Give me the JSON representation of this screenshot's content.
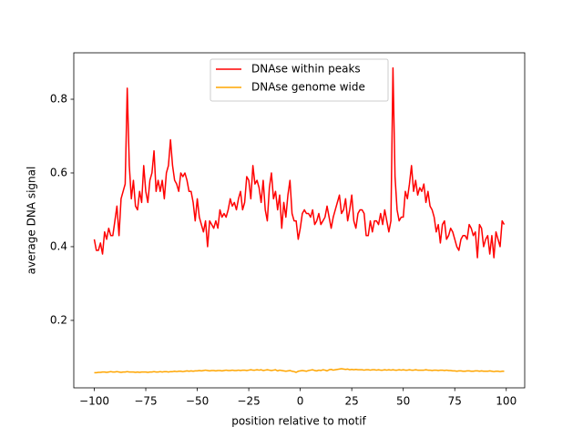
{
  "chart_data": {
    "type": "line",
    "xlabel": "position relative to motif",
    "ylabel": "average DNA signal",
    "x": [
      -100,
      -99,
      -98,
      -97,
      -96,
      -95,
      -94,
      -93,
      -92,
      -91,
      -90,
      -89,
      -88,
      -87,
      -86,
      -85,
      -84,
      -83,
      -82,
      -81,
      -80,
      -79,
      -78,
      -77,
      -76,
      -75,
      -74,
      -73,
      -72,
      -71,
      -70,
      -69,
      -68,
      -67,
      -66,
      -65,
      -64,
      -63,
      -62,
      -61,
      -60,
      -59,
      -58,
      -57,
      -56,
      -55,
      -54,
      -53,
      -52,
      -51,
      -50,
      -49,
      -48,
      -47,
      -46,
      -45,
      -44,
      -43,
      -42,
      -41,
      -40,
      -39,
      -38,
      -37,
      -36,
      -35,
      -34,
      -33,
      -32,
      -31,
      -30,
      -29,
      -28,
      -27,
      -26,
      -25,
      -24,
      -23,
      -22,
      -21,
      -20,
      -19,
      -18,
      -17,
      -16,
      -15,
      -14,
      -13,
      -12,
      -11,
      -10,
      -9,
      -8,
      -7,
      -6,
      -5,
      -4,
      -3,
      -2,
      -1,
      0,
      1,
      2,
      3,
      4,
      5,
      6,
      7,
      8,
      9,
      10,
      11,
      12,
      13,
      14,
      15,
      16,
      17,
      18,
      19,
      20,
      21,
      22,
      23,
      24,
      25,
      26,
      27,
      28,
      29,
      30,
      31,
      32,
      33,
      34,
      35,
      36,
      37,
      38,
      39,
      40,
      41,
      42,
      43,
      44,
      45,
      46,
      47,
      48,
      49,
      50,
      51,
      52,
      53,
      54,
      55,
      56,
      57,
      58,
      59,
      60,
      61,
      62,
      63,
      64,
      65,
      66,
      67,
      68,
      69,
      70,
      71,
      72,
      73,
      74,
      75,
      76,
      77,
      78,
      79,
      80,
      81,
      82,
      83,
      84,
      85,
      86,
      87,
      88,
      89,
      90,
      91,
      92,
      93,
      94,
      95,
      96,
      97,
      98,
      99
    ],
    "series": [
      {
        "name": "DNAse within peaks",
        "color": "#ff0000",
        "values": [
          0.42,
          0.39,
          0.39,
          0.41,
          0.38,
          0.44,
          0.42,
          0.45,
          0.43,
          0.43,
          0.47,
          0.51,
          0.43,
          0.53,
          0.55,
          0.57,
          0.83,
          0.62,
          0.53,
          0.58,
          0.51,
          0.5,
          0.55,
          0.52,
          0.62,
          0.55,
          0.52,
          0.58,
          0.6,
          0.66,
          0.55,
          0.58,
          0.55,
          0.58,
          0.53,
          0.6,
          0.62,
          0.69,
          0.62,
          0.58,
          0.57,
          0.55,
          0.6,
          0.59,
          0.6,
          0.58,
          0.55,
          0.55,
          0.52,
          0.47,
          0.53,
          0.48,
          0.46,
          0.44,
          0.47,
          0.4,
          0.47,
          0.46,
          0.45,
          0.47,
          0.45,
          0.5,
          0.48,
          0.49,
          0.48,
          0.5,
          0.53,
          0.51,
          0.52,
          0.5,
          0.53,
          0.55,
          0.5,
          0.52,
          0.59,
          0.58,
          0.53,
          0.62,
          0.57,
          0.58,
          0.56,
          0.52,
          0.58,
          0.5,
          0.47,
          0.56,
          0.6,
          0.53,
          0.55,
          0.5,
          0.54,
          0.45,
          0.52,
          0.48,
          0.54,
          0.58,
          0.49,
          0.47,
          0.47,
          0.42,
          0.45,
          0.49,
          0.5,
          0.49,
          0.49,
          0.48,
          0.5,
          0.46,
          0.47,
          0.49,
          0.46,
          0.47,
          0.48,
          0.51,
          0.48,
          0.45,
          0.48,
          0.5,
          0.52,
          0.54,
          0.49,
          0.5,
          0.53,
          0.47,
          0.5,
          0.54,
          0.47,
          0.45,
          0.49,
          0.5,
          0.5,
          0.49,
          0.43,
          0.43,
          0.47,
          0.44,
          0.47,
          0.47,
          0.46,
          0.49,
          0.46,
          0.5,
          0.47,
          0.44,
          0.47,
          0.885,
          0.59,
          0.5,
          0.47,
          0.48,
          0.48,
          0.55,
          0.53,
          0.57,
          0.62,
          0.55,
          0.58,
          0.54,
          0.56,
          0.55,
          0.57,
          0.52,
          0.55,
          0.51,
          0.5,
          0.48,
          0.44,
          0.46,
          0.41,
          0.46,
          0.47,
          0.42,
          0.43,
          0.45,
          0.44,
          0.42,
          0.4,
          0.39,
          0.42,
          0.43,
          0.43,
          0.42,
          0.46,
          0.45,
          0.43,
          0.44,
          0.37,
          0.46,
          0.45,
          0.4,
          0.42,
          0.43,
          0.38,
          0.43,
          0.37,
          0.44,
          0.42,
          0.4,
          0.47,
          0.46
        ]
      },
      {
        "name": "DNAse genome wide",
        "color": "#ffa500",
        "values": [
          0.058,
          0.058,
          0.059,
          0.059,
          0.06,
          0.06,
          0.059,
          0.06,
          0.061,
          0.06,
          0.06,
          0.061,
          0.06,
          0.059,
          0.06,
          0.06,
          0.061,
          0.06,
          0.06,
          0.06,
          0.059,
          0.06,
          0.059,
          0.06,
          0.06,
          0.06,
          0.059,
          0.06,
          0.06,
          0.061,
          0.06,
          0.06,
          0.061,
          0.06,
          0.061,
          0.061,
          0.06,
          0.061,
          0.061,
          0.062,
          0.061,
          0.062,
          0.062,
          0.061,
          0.062,
          0.063,
          0.062,
          0.063,
          0.062,
          0.063,
          0.063,
          0.064,
          0.063,
          0.064,
          0.065,
          0.064,
          0.063,
          0.064,
          0.064,
          0.063,
          0.064,
          0.064,
          0.063,
          0.064,
          0.065,
          0.064,
          0.064,
          0.065,
          0.064,
          0.064,
          0.065,
          0.064,
          0.065,
          0.065,
          0.064,
          0.065,
          0.066,
          0.065,
          0.065,
          0.066,
          0.065,
          0.066,
          0.064,
          0.065,
          0.066,
          0.065,
          0.064,
          0.065,
          0.066,
          0.063,
          0.065,
          0.064,
          0.063,
          0.062,
          0.063,
          0.064,
          0.062,
          0.061,
          0.059,
          0.062,
          0.063,
          0.064,
          0.063,
          0.062,
          0.064,
          0.065,
          0.066,
          0.064,
          0.063,
          0.065,
          0.064,
          0.066,
          0.065,
          0.063,
          0.066,
          0.067,
          0.065,
          0.066,
          0.067,
          0.068,
          0.069,
          0.068,
          0.067,
          0.068,
          0.066,
          0.067,
          0.066,
          0.067,
          0.066,
          0.066,
          0.066,
          0.065,
          0.066,
          0.066,
          0.065,
          0.066,
          0.066,
          0.065,
          0.066,
          0.065,
          0.065,
          0.066,
          0.065,
          0.066,
          0.065,
          0.066,
          0.065,
          0.065,
          0.066,
          0.065,
          0.066,
          0.065,
          0.065,
          0.066,
          0.065,
          0.065,
          0.066,
          0.065,
          0.065,
          0.065,
          0.065,
          0.066,
          0.065,
          0.065,
          0.064,
          0.065,
          0.065,
          0.064,
          0.065,
          0.065,
          0.064,
          0.065,
          0.064,
          0.064,
          0.063,
          0.063,
          0.062,
          0.063,
          0.063,
          0.062,
          0.062,
          0.063,
          0.063,
          0.062,
          0.062,
          0.063,
          0.063,
          0.062,
          0.063,
          0.062,
          0.062,
          0.062,
          0.063,
          0.062,
          0.061,
          0.062,
          0.062,
          0.061,
          0.062,
          0.062
        ]
      }
    ],
    "xlim": [
      -109.95,
      108.95
    ],
    "xticks": [
      {
        "value": -100,
        "label": "−100"
      },
      {
        "value": -75,
        "label": "−75"
      },
      {
        "value": -50,
        "label": "−50"
      },
      {
        "value": -25,
        "label": "−25"
      },
      0,
      25,
      50,
      75,
      100
    ],
    "ylim": [
      0.017,
      0.926
    ],
    "yticks": [
      0.2,
      0.4,
      0.6,
      0.8
    ],
    "legend": "upper center"
  }
}
